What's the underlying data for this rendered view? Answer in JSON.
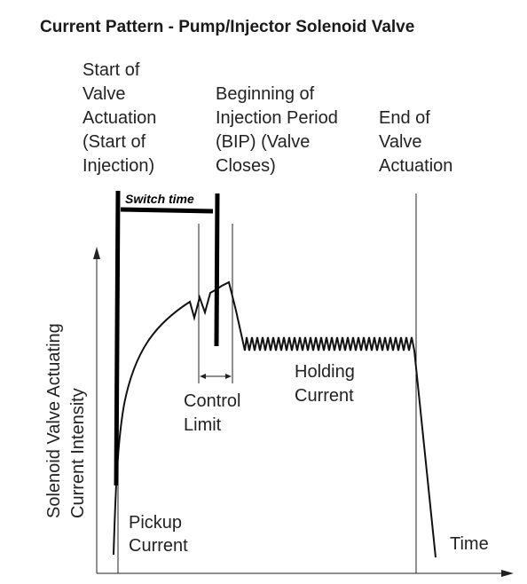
{
  "title": "Current Pattern - Pump/Injector Solenoid Valve",
  "labels": {
    "start_actuation": [
      "Start of",
      "Valve",
      "Actuation",
      "(Start of",
      "Injection)"
    ],
    "bip": [
      "Beginning of",
      "Injection Period",
      "(BIP) (Valve",
      "Closes)"
    ],
    "end_actuation": [
      "End of",
      "Valve",
      "Actuation"
    ],
    "switch_time": "Switch time",
    "control_limit": [
      "Control",
      "Limit"
    ],
    "holding_current": [
      "Holding",
      "Current"
    ],
    "pickup_current": [
      "Pickup",
      "Current"
    ],
    "time_axis": "Time",
    "y_axis": [
      "Solenoid Valve Actuating",
      "Current Intensity"
    ]
  },
  "colors": {
    "line": "#111111",
    "text": "#222222",
    "annotation": "#000000"
  }
}
